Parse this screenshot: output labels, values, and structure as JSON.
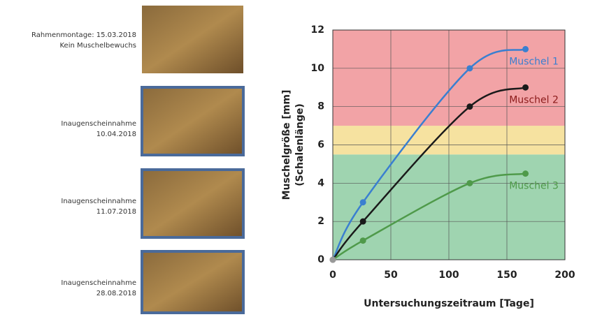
{
  "photos": [
    {
      "lines": [
        "Rahmenmontage: 15.03.2018",
        "Kein Muschelbewuchs"
      ]
    },
    {
      "lines": [
        "Inaugenscheinnahme",
        "10.04.2018"
      ]
    },
    {
      "lines": [
        "Inaugenscheinnahme",
        "11.07.2018"
      ]
    },
    {
      "lines": [
        "Inaugenscheinnahme",
        "28.08.2018"
      ]
    }
  ],
  "chart_data": {
    "type": "line",
    "x_label": "Untersuchungszeitraum [Tage]",
    "y_label": [
      "Muschelgröße [mm]",
      "(Schalenlänge)"
    ],
    "x": [
      0,
      26,
      118,
      166
    ],
    "series": [
      {
        "name": "Muschel 1",
        "color": "#3a7fd0",
        "values": [
          0,
          3,
          10,
          11
        ]
      },
      {
        "name": "Muschel 2",
        "color": "#1a1a1a",
        "label_color": "#8b1a1a",
        "values": [
          0,
          2,
          8,
          9
        ]
      },
      {
        "name": "Muschel 3",
        "color": "#4f9a4a",
        "values": [
          0,
          1,
          4,
          4.5
        ]
      }
    ],
    "bands": [
      {
        "from": 0,
        "to": 5.5,
        "color": "#9fd4b0"
      },
      {
        "from": 5.5,
        "to": 7,
        "color": "#f6e2a0"
      },
      {
        "from": 7,
        "to": 12,
        "color": "#f2a3a6"
      }
    ],
    "xlim": [
      0,
      200
    ],
    "xticks": [
      0,
      50,
      100,
      150,
      200
    ],
    "ylim": [
      0,
      12
    ],
    "yticks": [
      0,
      2,
      4,
      6,
      8,
      10,
      12
    ],
    "grid": true
  }
}
